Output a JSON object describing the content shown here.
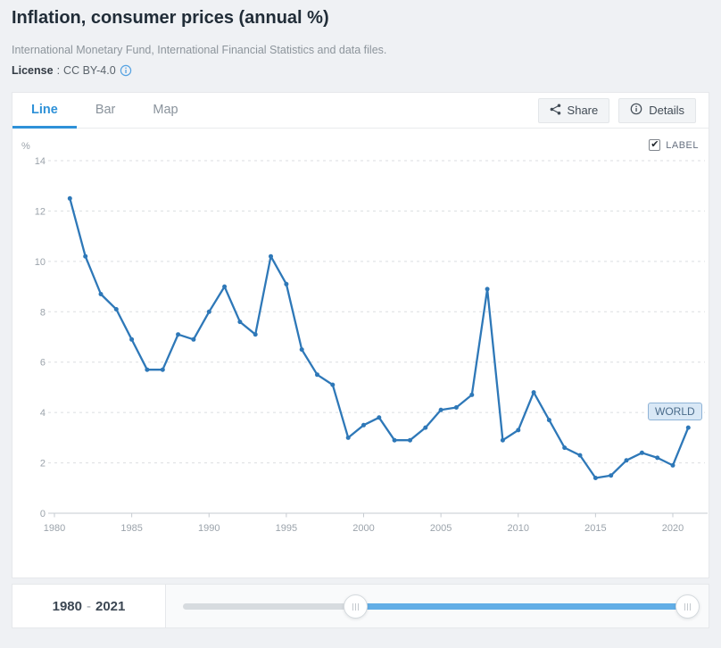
{
  "header": {
    "title": "Inflation, consumer prices (annual %)",
    "source": "International Monetary Fund, International Financial Statistics and data files.",
    "license_label": "License",
    "license_separator": ":",
    "license_value": "CC BY-4.0"
  },
  "toolbar": {
    "tabs": [
      {
        "label": "Line",
        "active": true
      },
      {
        "label": "Bar",
        "active": false
      },
      {
        "label": "Map",
        "active": false
      }
    ],
    "share_label": "Share",
    "details_label": "Details"
  },
  "chart": {
    "unit_label": "%",
    "label_checkbox": {
      "label": "LABEL",
      "checked": true
    },
    "series_badge": "WORLD"
  },
  "chart_data": {
    "type": "line",
    "title": "Inflation, consumer prices (annual %)",
    "xlabel": "",
    "ylabel": "%",
    "ylim": [
      0,
      14
    ],
    "ytick_step": 2,
    "xlim": [
      1980,
      2021
    ],
    "xticks": [
      1980,
      1985,
      1990,
      1995,
      2000,
      2005,
      2010,
      2015,
      2020
    ],
    "grid": "dashed-horizontal",
    "legend_position": "end-of-line-badge",
    "series": [
      {
        "name": "WORLD",
        "x": [
          1981,
          1982,
          1983,
          1984,
          1985,
          1986,
          1987,
          1988,
          1989,
          1990,
          1991,
          1992,
          1993,
          1994,
          1995,
          1996,
          1997,
          1998,
          1999,
          2000,
          2001,
          2002,
          2003,
          2004,
          2005,
          2006,
          2007,
          2008,
          2009,
          2010,
          2011,
          2012,
          2013,
          2014,
          2015,
          2016,
          2017,
          2018,
          2019,
          2020,
          2021
        ],
        "values": [
          12.5,
          10.2,
          8.7,
          8.1,
          6.9,
          5.7,
          5.7,
          7.1,
          6.9,
          8.0,
          9.0,
          7.6,
          7.1,
          10.2,
          9.1,
          6.5,
          5.5,
          5.1,
          3.0,
          3.5,
          3.8,
          2.9,
          2.9,
          3.4,
          4.1,
          4.2,
          4.7,
          8.9,
          2.9,
          3.3,
          4.8,
          3.7,
          2.6,
          2.3,
          1.4,
          1.5,
          2.1,
          2.4,
          2.2,
          1.9,
          3.4
        ]
      }
    ]
  },
  "range_slider": {
    "start_year": "1980",
    "separator": "-",
    "end_year": "2021",
    "handles_pct": [
      34.3,
      100
    ]
  },
  "colors": {
    "line_blue": "#2e78b8",
    "tab_blue": "#2e91d8",
    "slider_blue": "#62aee6",
    "info_blue": "#55a2e2"
  }
}
